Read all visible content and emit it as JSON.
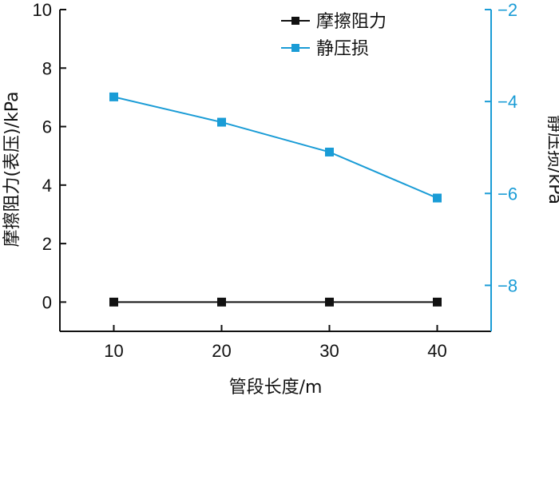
{
  "chart_data": {
    "type": "line",
    "title": "",
    "xlabel": "管段长度/m",
    "ylabel_left": "摩擦阻力(表压)/kPa",
    "ylabel_right": "静压损/kPa",
    "x": [
      10,
      20,
      30,
      40
    ],
    "x_ticks": [
      "10",
      "20",
      "30",
      "40"
    ],
    "xlim": [
      5,
      45
    ],
    "ylim_left": [
      -1,
      10
    ],
    "ylim_right": [
      -9,
      -2
    ],
    "y_ticks_left": [
      "0",
      "2",
      "4",
      "6",
      "8",
      "10"
    ],
    "y_ticks_right": [
      "−8",
      "−6",
      "−4",
      "−2"
    ],
    "series": [
      {
        "name": "摩擦阻力",
        "axis": "left",
        "values": [
          0,
          0,
          0,
          0
        ],
        "color": "#111111",
        "marker": "square"
      },
      {
        "name": "静压损",
        "axis": "right",
        "values": [
          -3.9,
          -4.45,
          -5.1,
          -6.1
        ],
        "color": "#1a9cd6",
        "marker": "square"
      }
    ],
    "legend_position": "top-right",
    "grid": false
  }
}
